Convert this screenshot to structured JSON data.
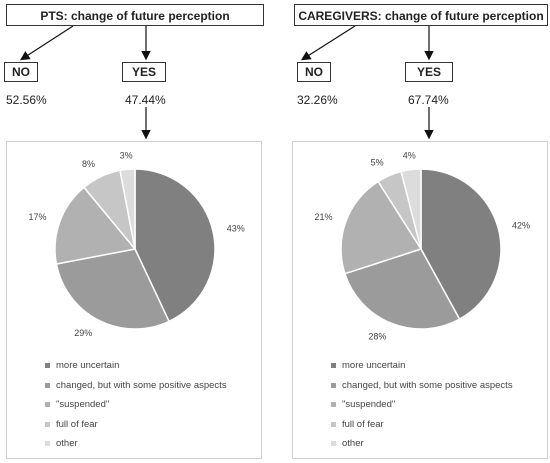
{
  "chart_data": [
    {
      "type": "pie",
      "title": "PTS: change of future perception",
      "answers": {
        "no_label": "NO",
        "no_value": "52.56%",
        "yes_label": "YES",
        "yes_value": "47.44%"
      },
      "categories": [
        "more uncertain",
        "changed, but with some positive aspects",
        "\"suspended\"",
        "full of fear",
        "other"
      ],
      "values": [
        43,
        29,
        17,
        8,
        3
      ],
      "labels": [
        "43%",
        "29%",
        "17%",
        "8%",
        "3%"
      ],
      "colors": [
        "#808080",
        "#9b9b9b",
        "#b1b1b1",
        "#c6c6c6",
        "#dcdcdc"
      ],
      "legend_position": "bottom"
    },
    {
      "type": "pie",
      "title": "CAREGIVERS: change of future perception",
      "answers": {
        "no_label": "NO",
        "no_value": "32.26%",
        "yes_label": "YES",
        "yes_value": "67.74%"
      },
      "categories": [
        "more uncertain",
        "changed, but with some positive aspects",
        "\"suspended\"",
        "full of fear",
        "other"
      ],
      "values": [
        42,
        28,
        21,
        5,
        4
      ],
      "labels": [
        "42%",
        "28%",
        "21%",
        "5%",
        "4%"
      ],
      "colors": [
        "#808080",
        "#9b9b9b",
        "#b1b1b1",
        "#c6c6c6",
        "#dcdcdc"
      ],
      "legend_position": "bottom"
    }
  ]
}
